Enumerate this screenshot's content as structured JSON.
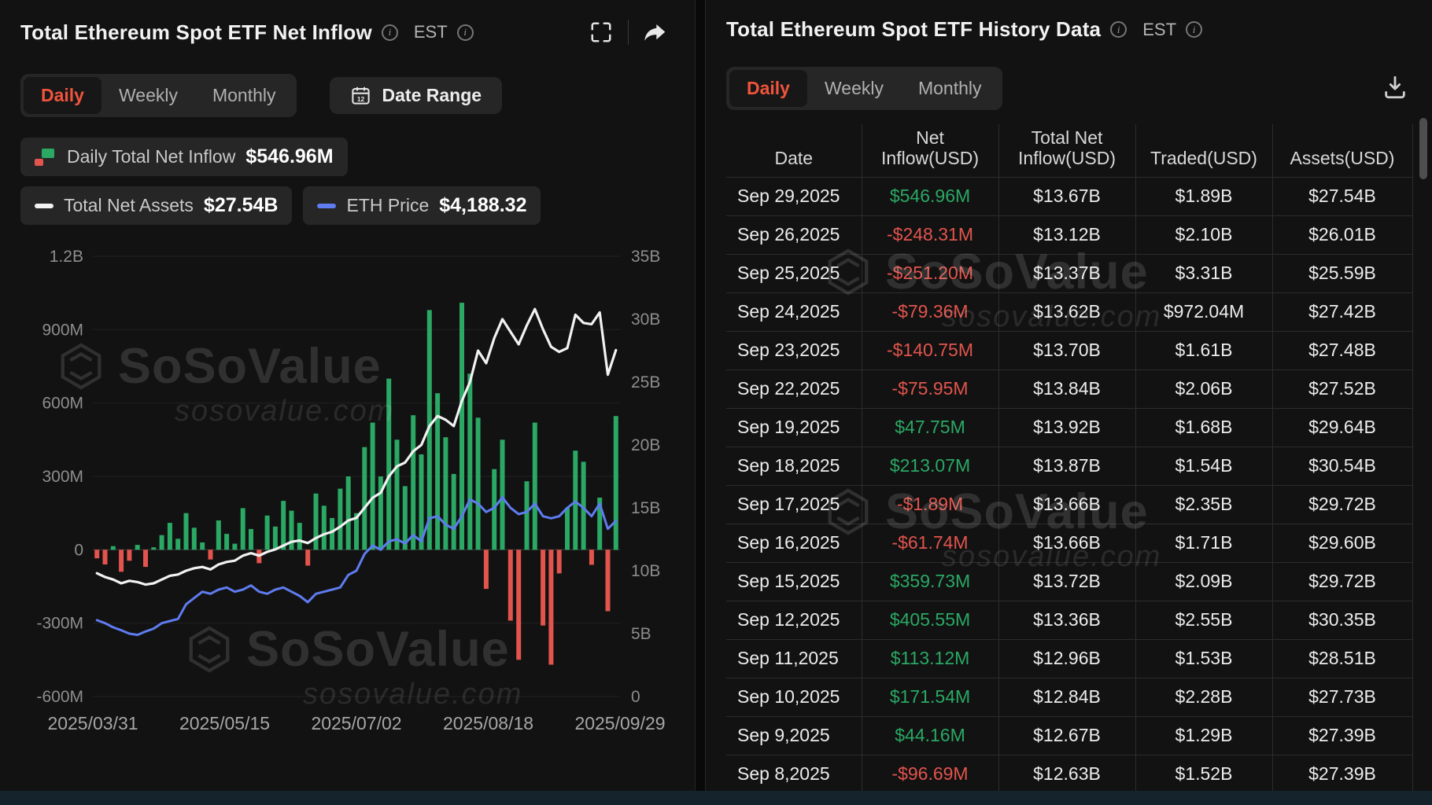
{
  "colors": {
    "accent": "#f0543c",
    "green": "#2aa864",
    "red": "#e2544d",
    "blue": "#5f7cf0"
  },
  "watermark": {
    "brand": "SoSoValue",
    "domain": "sosovalue.com"
  },
  "left_panel": {
    "title": "Total Ethereum Spot ETF Net Inflow",
    "timezone": "EST",
    "tabs": [
      {
        "label": "Daily",
        "active": true
      },
      {
        "label": "Weekly",
        "active": false
      },
      {
        "label": "Monthly",
        "active": false
      }
    ],
    "date_range": {
      "label": "Date Range"
    },
    "legend": {
      "inflow": {
        "label": "Daily Total Net Inflow",
        "value": "$546.96M"
      },
      "assets": {
        "label": "Total Net Assets",
        "value": "$27.54B"
      },
      "eth": {
        "label": "ETH Price",
        "value": "$4,188.32"
      }
    }
  },
  "right_panel": {
    "title": "Total Ethereum Spot ETF History Data",
    "timezone": "EST",
    "tabs": [
      {
        "label": "Daily",
        "active": true
      },
      {
        "label": "Weekly",
        "active": false
      },
      {
        "label": "Monthly",
        "active": false
      }
    ],
    "table": {
      "columns": [
        "Date",
        "Net Inflow(USD)",
        "Total Net Inflow(USD)",
        "Traded(USD)",
        "Assets(USD)"
      ],
      "rows": [
        {
          "date": "Sep 29,2025",
          "net_inflow": "$546.96M",
          "total_net_inflow": "$13.67B",
          "traded": "$1.89B",
          "assets": "$27.54B"
        },
        {
          "date": "Sep 26,2025",
          "net_inflow": "-$248.31M",
          "total_net_inflow": "$13.12B",
          "traded": "$2.10B",
          "assets": "$26.01B"
        },
        {
          "date": "Sep 25,2025",
          "net_inflow": "-$251.20M",
          "total_net_inflow": "$13.37B",
          "traded": "$3.31B",
          "assets": "$25.59B"
        },
        {
          "date": "Sep 24,2025",
          "net_inflow": "-$79.36M",
          "total_net_inflow": "$13.62B",
          "traded": "$972.04M",
          "assets": "$27.42B"
        },
        {
          "date": "Sep 23,2025",
          "net_inflow": "-$140.75M",
          "total_net_inflow": "$13.70B",
          "traded": "$1.61B",
          "assets": "$27.48B"
        },
        {
          "date": "Sep 22,2025",
          "net_inflow": "-$75.95M",
          "total_net_inflow": "$13.84B",
          "traded": "$2.06B",
          "assets": "$27.52B"
        },
        {
          "date": "Sep 19,2025",
          "net_inflow": "$47.75M",
          "total_net_inflow": "$13.92B",
          "traded": "$1.68B",
          "assets": "$29.64B"
        },
        {
          "date": "Sep 18,2025",
          "net_inflow": "$213.07M",
          "total_net_inflow": "$13.87B",
          "traded": "$1.54B",
          "assets": "$30.54B"
        },
        {
          "date": "Sep 17,2025",
          "net_inflow": "-$1.89M",
          "total_net_inflow": "$13.66B",
          "traded": "$2.35B",
          "assets": "$29.72B"
        },
        {
          "date": "Sep 16,2025",
          "net_inflow": "-$61.74M",
          "total_net_inflow": "$13.66B",
          "traded": "$1.71B",
          "assets": "$29.60B"
        },
        {
          "date": "Sep 15,2025",
          "net_inflow": "$359.73M",
          "total_net_inflow": "$13.72B",
          "traded": "$2.09B",
          "assets": "$29.72B"
        },
        {
          "date": "Sep 12,2025",
          "net_inflow": "$405.55M",
          "total_net_inflow": "$13.36B",
          "traded": "$2.55B",
          "assets": "$30.35B"
        },
        {
          "date": "Sep 11,2025",
          "net_inflow": "$113.12M",
          "total_net_inflow": "$12.96B",
          "traded": "$1.53B",
          "assets": "$28.51B"
        },
        {
          "date": "Sep 10,2025",
          "net_inflow": "$171.54M",
          "total_net_inflow": "$12.84B",
          "traded": "$2.28B",
          "assets": "$27.73B"
        },
        {
          "date": "Sep 9,2025",
          "net_inflow": "$44.16M",
          "total_net_inflow": "$12.67B",
          "traded": "$1.29B",
          "assets": "$27.39B"
        },
        {
          "date": "Sep 8,2025",
          "net_inflow": "-$96.69M",
          "total_net_inflow": "$12.63B",
          "traded": "$1.52B",
          "assets": "$27.39B"
        }
      ]
    }
  },
  "chart_data": {
    "type": "bar",
    "subtype": "combo-bar-line",
    "x_range": [
      "2025/03/31",
      "2025/09/29"
    ],
    "x_tick_labels": [
      "2025/03/31",
      "2025/05/15",
      "2025/07/02",
      "2025/08/18",
      "2025/09/29"
    ],
    "left_axis": {
      "unit": "USD millions",
      "min": -600,
      "max": 1200,
      "tick_values": [
        1200,
        900,
        600,
        300,
        0,
        -300,
        -600
      ],
      "tick_labels": [
        "1.2B",
        "900M",
        "600M",
        "300M",
        "0",
        "-300M",
        "-600M"
      ]
    },
    "right_axis": {
      "unit": "USD billions",
      "min": 0,
      "max": 35,
      "tick_values": [
        35,
        30,
        25,
        20,
        15,
        10,
        5,
        0
      ],
      "tick_labels": [
        "35B",
        "30B",
        "25B",
        "20B",
        "15B",
        "10B",
        "5B",
        "0"
      ]
    },
    "eth_axis": {
      "unit": "USD",
      "min": 0,
      "max": 10500,
      "hidden": true
    },
    "grid": "horizontal",
    "legend_position": "top",
    "series": [
      {
        "name": "Daily Total Net Inflow",
        "type": "bar",
        "axis": "left",
        "unit": "USD millions",
        "values": [
          -35,
          -60,
          15,
          -90,
          -45,
          20,
          -70,
          10,
          60,
          110,
          45,
          150,
          90,
          30,
          -40,
          120,
          65,
          25,
          170,
          85,
          -55,
          140,
          95,
          200,
          160,
          110,
          -65,
          230,
          180,
          130,
          250,
          300,
          150,
          420,
          520,
          300,
          700,
          450,
          260,
          550,
          390,
          980,
          640,
          460,
          310,
          1010,
          720,
          540,
          -160,
          330,
          450,
          -290,
          -450,
          280,
          520,
          -310,
          -470,
          -96.69,
          171.54,
          405.55,
          359.73,
          -61.74,
          213.07,
          -251.2,
          546.96
        ]
      },
      {
        "name": "Total Net Assets",
        "type": "line",
        "axis": "right",
        "unit": "USD billions",
        "values": [
          9.8,
          9.5,
          9.3,
          9.0,
          9.2,
          9.1,
          8.9,
          9.0,
          9.3,
          9.6,
          9.7,
          10.0,
          10.2,
          10.3,
          10.1,
          10.5,
          10.7,
          10.8,
          11.2,
          11.4,
          11.2,
          11.5,
          11.7,
          12.0,
          12.3,
          12.4,
          12.2,
          12.6,
          12.9,
          13.1,
          13.5,
          14.0,
          14.2,
          15.0,
          15.8,
          16.2,
          17.5,
          18.3,
          18.6,
          19.5,
          20.0,
          21.5,
          22.3,
          22.0,
          21.5,
          23.5,
          25.0,
          27.5,
          26.5,
          28.5,
          30.0,
          29.0,
          28.0,
          29.5,
          30.8,
          29.2,
          27.8,
          27.4,
          27.7,
          30.35,
          29.7,
          29.6,
          30.54,
          25.59,
          27.54
        ]
      },
      {
        "name": "ETH Price",
        "type": "line",
        "axis": "hidden",
        "unit": "USD",
        "values": [
          1820,
          1750,
          1650,
          1580,
          1500,
          1470,
          1550,
          1620,
          1750,
          1800,
          1850,
          2200,
          2350,
          2500,
          2450,
          2550,
          2600,
          2500,
          2550,
          2650,
          2500,
          2450,
          2550,
          2600,
          2500,
          2400,
          2250,
          2450,
          2500,
          2550,
          2600,
          2900,
          3000,
          3400,
          3600,
          3500,
          3700,
          3750,
          3650,
          3850,
          3700,
          4250,
          4300,
          4100,
          4000,
          4300,
          4700,
          4600,
          4400,
          4500,
          4750,
          4500,
          4350,
          4400,
          4600,
          4300,
          4250,
          4300,
          4500,
          4650,
          4500,
          4300,
          4600,
          4000,
          4188.32
        ]
      }
    ]
  }
}
